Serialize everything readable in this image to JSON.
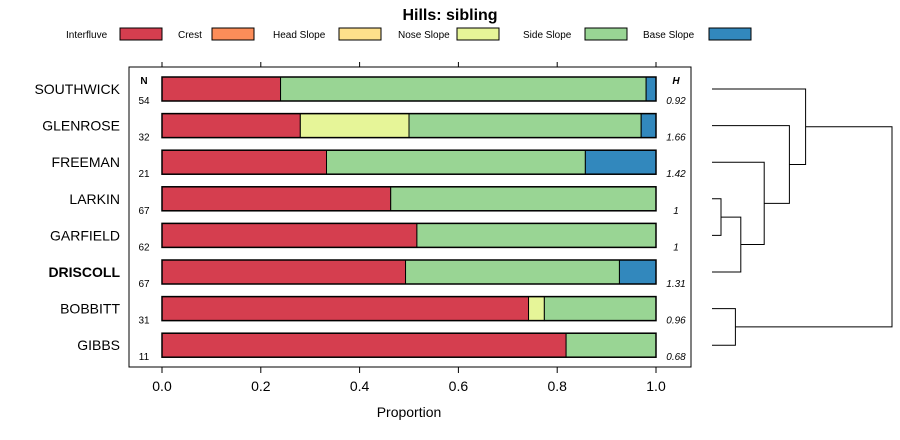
{
  "chart_data": {
    "type": "bar",
    "subtype": "stacked-horizontal-proportion",
    "title": "Hills: sibling",
    "xlabel": "Proportion",
    "ylabel": "",
    "xlim": [
      0,
      1
    ],
    "xticks": [
      "0.0",
      "0.2",
      "0.4",
      "0.6",
      "0.8",
      "1.0"
    ],
    "xtick_values": [
      0,
      0.2,
      0.4,
      0.6,
      0.8,
      1.0
    ],
    "n_header": "N",
    "h_header": "H",
    "legend": {
      "placement": "top",
      "items": [
        {
          "name": "Interfluve",
          "color": "#d53e4f"
        },
        {
          "name": "Crest",
          "color": "#fc8d59"
        },
        {
          "name": "Head Slope",
          "color": "#fee08b"
        },
        {
          "name": "Nose Slope",
          "color": "#e6f598"
        },
        {
          "name": "Side Slope",
          "color": "#99d594"
        },
        {
          "name": "Base Slope",
          "color": "#3288bd"
        }
      ]
    },
    "categories": [
      "SOUTHWICK",
      "GLENROSE",
      "FREEMAN",
      "LARKIN",
      "GARFIELD",
      "DRISCOLL",
      "BOBBITT",
      "GIBBS"
    ],
    "highlight": "DRISCOLL",
    "n": [
      "54",
      "32",
      "21",
      "67",
      "62",
      "67",
      "31",
      "11"
    ],
    "h": [
      "0.92",
      "1.66",
      "1.42",
      "1",
      "1",
      "1.31",
      "0.96",
      "0.68"
    ],
    "series": [
      {
        "name": "Interfluve",
        "values": [
          0.24,
          0.28,
          0.333,
          0.463,
          0.516,
          0.493,
          0.742,
          0.818
        ]
      },
      {
        "name": "Crest",
        "values": [
          0,
          0,
          0,
          0,
          0,
          0,
          0,
          0
        ]
      },
      {
        "name": "Head Slope",
        "values": [
          0,
          0,
          0,
          0,
          0,
          0,
          0,
          0
        ]
      },
      {
        "name": "Nose Slope",
        "values": [
          0,
          0.22,
          0,
          0,
          0,
          0,
          0.032,
          0
        ]
      },
      {
        "name": "Side Slope",
        "values": [
          0.74,
          0.47,
          0.524,
          0.537,
          0.484,
          0.433,
          0.226,
          0.182
        ]
      },
      {
        "name": "Base Slope",
        "values": [
          0.02,
          0.03,
          0.143,
          0,
          0,
          0.074,
          0,
          0
        ]
      }
    ],
    "dendrogram": {
      "leaves": [
        "SOUTHWICK",
        "GLENROSE",
        "FREEMAN",
        "LARKIN",
        "GARFIELD",
        "DRISCOLL",
        "BOBBITT",
        "GIBBS"
      ],
      "merges": [
        {
          "a": "LARKIN",
          "b": "GARFIELD",
          "height": 0.05
        },
        {
          "a": "m0",
          "b": "DRISCOLL",
          "height": 0.16
        },
        {
          "a": "BOBBITT",
          "b": "GIBBS",
          "height": 0.13
        },
        {
          "a": "m1",
          "b": "FREEMAN",
          "height": 0.29
        },
        {
          "a": "m3",
          "b": "GLENROSE",
          "height": 0.43
        },
        {
          "a": "m4",
          "b": "SOUTHWICK",
          "height": 0.52
        },
        {
          "a": "m5",
          "b": "m2",
          "height": 1.0
        }
      ]
    }
  }
}
